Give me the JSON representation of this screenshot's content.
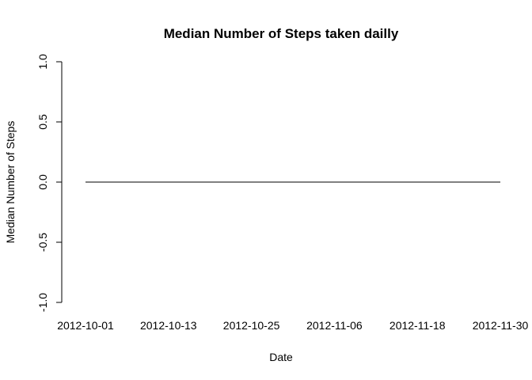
{
  "chart_data": {
    "type": "line",
    "title": "Median Number of Steps taken dailly",
    "xlabel": "Date",
    "ylabel": "Median Number of Steps",
    "ylim": [
      -1.0,
      1.0
    ],
    "y_ticks": [
      -1.0,
      -0.5,
      0.0,
      0.5,
      1.0
    ],
    "y_tick_labels": [
      "-1.0",
      "-0.5",
      "0.0",
      "0.5",
      "1.0"
    ],
    "x_ticks": [
      "2012-10-01",
      "2012-10-13",
      "2012-10-25",
      "2012-11-06",
      "2012-11-18",
      "2012-11-30"
    ],
    "x_range": [
      "2012-10-01",
      "2012-11-30"
    ],
    "grid": false,
    "legend": "none",
    "series": [
      {
        "segments": [
          {
            "x": [
              "2012-10-01",
              "2012-11-30"
            ],
            "y": [
              0,
              0
            ]
          }
        ]
      }
    ]
  }
}
